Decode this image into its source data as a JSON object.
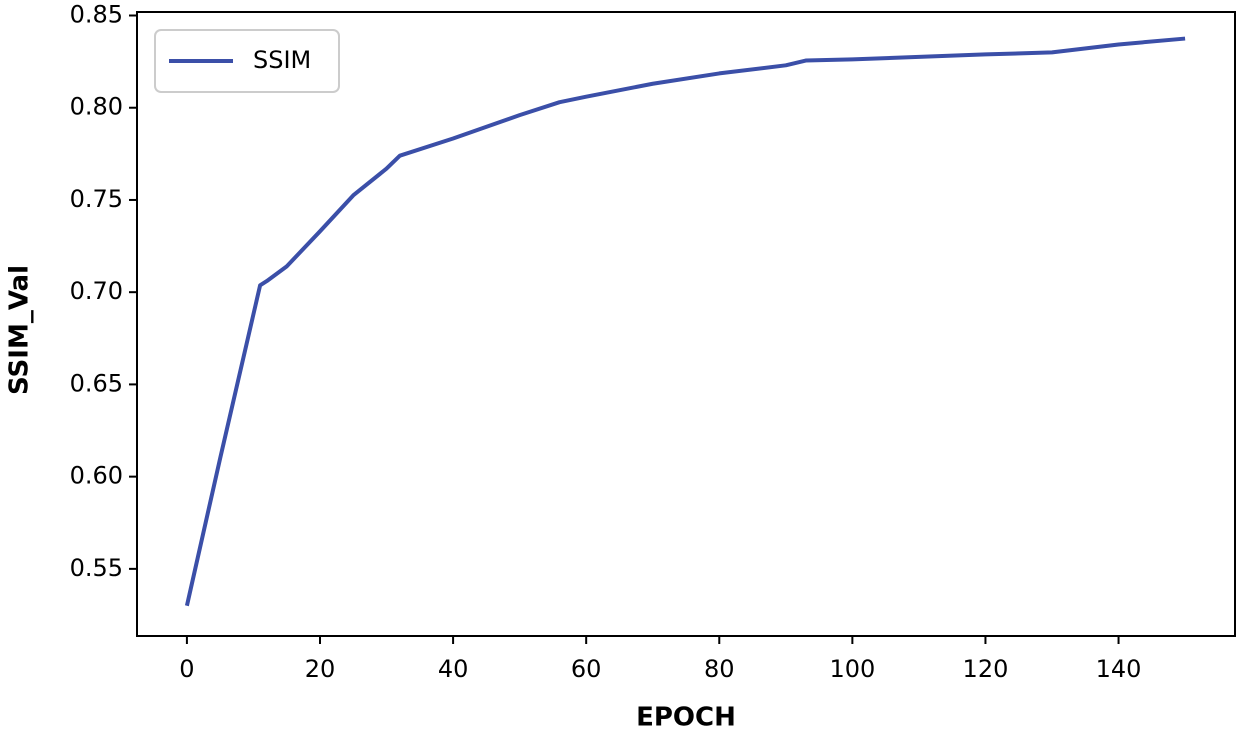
{
  "chart_data": {
    "type": "line",
    "x_label": "EPOCH",
    "y_label": "SSIM_Val",
    "x": [
      0,
      5,
      11,
      12,
      15,
      20,
      25,
      30,
      32,
      40,
      50,
      56,
      60,
      70,
      80,
      90,
      93,
      100,
      120,
      130,
      140,
      150
    ],
    "series": [
      {
        "name": "SSIM",
        "color": "#3b4fa8",
        "values": [
          0.53,
          0.61,
          0.7037,
          0.706,
          0.714,
          0.733,
          0.7525,
          0.767,
          0.774,
          0.7833,
          0.796,
          0.803,
          0.806,
          0.813,
          0.8186,
          0.823,
          0.8256,
          0.8262,
          0.8289,
          0.83,
          0.8343,
          0.8375
        ]
      }
    ],
    "xlim": [
      -7.5,
      157.5
    ],
    "ylim": [
      0.5136,
      0.8519
    ],
    "xticks": [
      0,
      20,
      40,
      60,
      80,
      100,
      120,
      140
    ],
    "yticks": [
      0.55,
      {
        "value": 0.6,
        "label": "0.60"
      },
      0.65,
      {
        "value": 0.7,
        "label": "0.70"
      },
      0.75,
      {
        "value": 0.8,
        "label": "0.80"
      },
      0.85
    ],
    "legend": "upper left"
  }
}
